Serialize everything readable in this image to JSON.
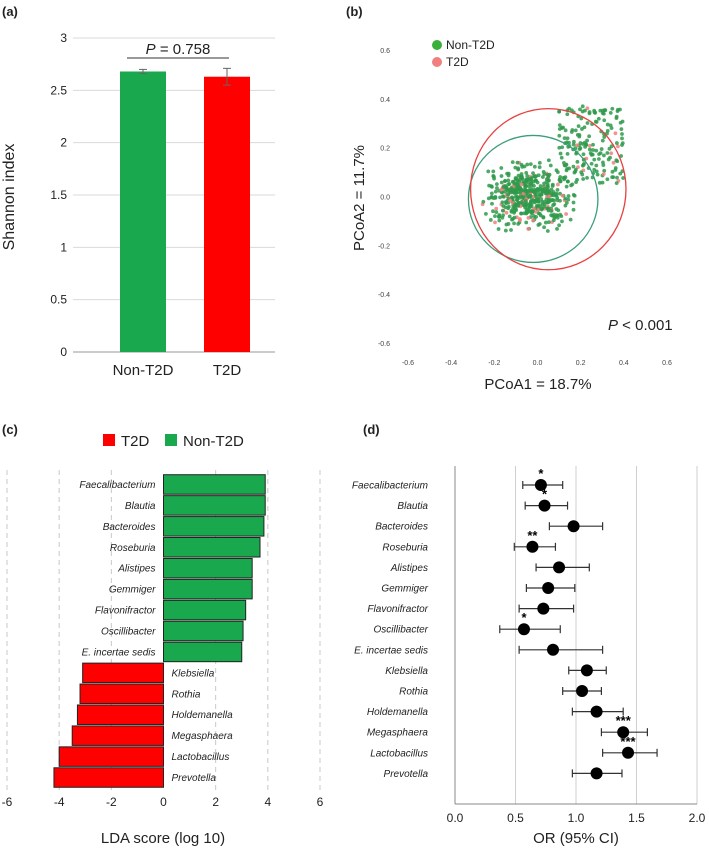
{
  "chart_data": [
    {
      "panel": "(a)",
      "type": "bar",
      "categories": [
        "Non-T2D",
        "T2D"
      ],
      "values": [
        2.68,
        2.63
      ],
      "errors": [
        0.02,
        0.08
      ],
      "colors": [
        "#1aa84f",
        "#ff0000"
      ],
      "ylabel": "Shannon index",
      "ylim": [
        0,
        3
      ],
      "yticks": [
        0,
        0.5,
        1,
        1.5,
        2,
        2.5,
        3
      ],
      "ytick_labels": [
        "0",
        "0.5",
        "1",
        "1.5",
        "2",
        "2.5",
        "3"
      ],
      "annotation_p": "P",
      "annotation_rest": " = 0.758",
      "grid": true
    },
    {
      "panel": "(b)",
      "type": "scatter",
      "xlabel": "PCoA1 = 18.7%",
      "ylabel": "PCoA2 = 11.7%",
      "xlim": [
        -0.6,
        0.6
      ],
      "ylim": [
        -0.6,
        0.6
      ],
      "xticks": [
        -0.6,
        -0.4,
        -0.2,
        0.0,
        0.2,
        0.4,
        0.6
      ],
      "xtick_labels": [
        "-0.6",
        "-0.4",
        "-0.2",
        "0.0",
        "0.2",
        "0.4",
        "0.6"
      ],
      "yticks": [
        0.6,
        0.4,
        0.2,
        0.0,
        -0.2,
        -0.4,
        -0.6
      ],
      "ytick_labels": [
        "0.6",
        "0.4",
        "0.2",
        "0.0",
        "-0.2",
        "-0.4",
        "-0.6"
      ],
      "legend": [
        {
          "name": "Non-T2D",
          "color": "#3aaf3a"
        },
        {
          "name": "T2D",
          "color": "#f08080"
        }
      ],
      "ellipses": [
        {
          "group": "Non-T2D",
          "color": "#3a9e7a",
          "cx": -0.02,
          "cy": -0.01,
          "rx": 0.3,
          "ry": 0.26
        },
        {
          "group": "T2D",
          "color": "#e84040",
          "cx": 0.05,
          "cy": 0.03,
          "rx": 0.36,
          "ry": 0.33
        }
      ],
      "annotation_p": "P",
      "annotation_rest": " < 0.001"
    },
    {
      "panel": "(c)",
      "type": "bar",
      "orientation": "horizontal",
      "legend": [
        {
          "name": "T2D",
          "color": "#ff0000"
        },
        {
          "name": "Non-T2D",
          "color": "#1aa84f"
        }
      ],
      "categories": [
        "Faecalibacterium",
        "Blautia",
        "Bacteroides",
        "Roseburia",
        "Alistipes",
        "Gemmiger",
        "Flavonifractor",
        "Oscillibacter",
        "E. incertae sedis",
        "Klebsiella",
        "Rothia",
        "Holdemanella",
        "Megasphaera",
        "Lactobacillus",
        "Prevotella"
      ],
      "values": [
        3.9,
        3.9,
        3.85,
        3.7,
        3.4,
        3.4,
        3.15,
        3.05,
        3.0,
        -3.1,
        -3.2,
        -3.3,
        -3.5,
        -4.0,
        -4.2
      ],
      "xlabel": "LDA score (log 10)",
      "xlim": [
        -6,
        6
      ],
      "xticks": [
        -6,
        -4,
        -2,
        0,
        2,
        4,
        6
      ],
      "xtick_labels": [
        "-6",
        "-4",
        "-2",
        "0",
        "2",
        "4",
        "6"
      ]
    },
    {
      "panel": "(d)",
      "type": "forest",
      "categories": [
        "Faecalibacterium",
        "Blautia",
        "Bacteroides",
        "Roseburia",
        "Alistipes",
        "Gemmiger",
        "Flavonifractor",
        "Oscillibacter",
        "E. incertae sedis",
        "Klebsiella",
        "Rothia",
        "Holdemanella",
        "Megasphaera",
        "Lactobacillus",
        "Prevotella"
      ],
      "or": [
        0.71,
        0.74,
        0.98,
        0.64,
        0.86,
        0.77,
        0.73,
        0.57,
        0.81,
        1.09,
        1.05,
        1.17,
        1.39,
        1.43,
        1.17
      ],
      "ci_low": [
        0.56,
        0.58,
        0.78,
        0.49,
        0.67,
        0.59,
        0.53,
        0.37,
        0.53,
        0.94,
        0.89,
        0.97,
        1.21,
        1.22,
        0.97
      ],
      "ci_high": [
        0.89,
        0.93,
        1.22,
        0.83,
        1.11,
        0.99,
        0.98,
        0.87,
        1.22,
        1.25,
        1.21,
        1.39,
        1.59,
        1.67,
        1.38
      ],
      "sig": [
        "*",
        "*",
        "",
        "**",
        "",
        "",
        "",
        "*",
        "",
        "",
        "",
        "",
        "***",
        "***",
        ""
      ],
      "xlabel": "OR (95% CI)",
      "xlim": [
        0.0,
        2.0
      ],
      "xticks": [
        0.0,
        0.5,
        1.0,
        1.5,
        2.0
      ],
      "xtick_labels": [
        "0.0",
        "0.5",
        "1.0",
        "1.5",
        "2.0"
      ]
    }
  ]
}
